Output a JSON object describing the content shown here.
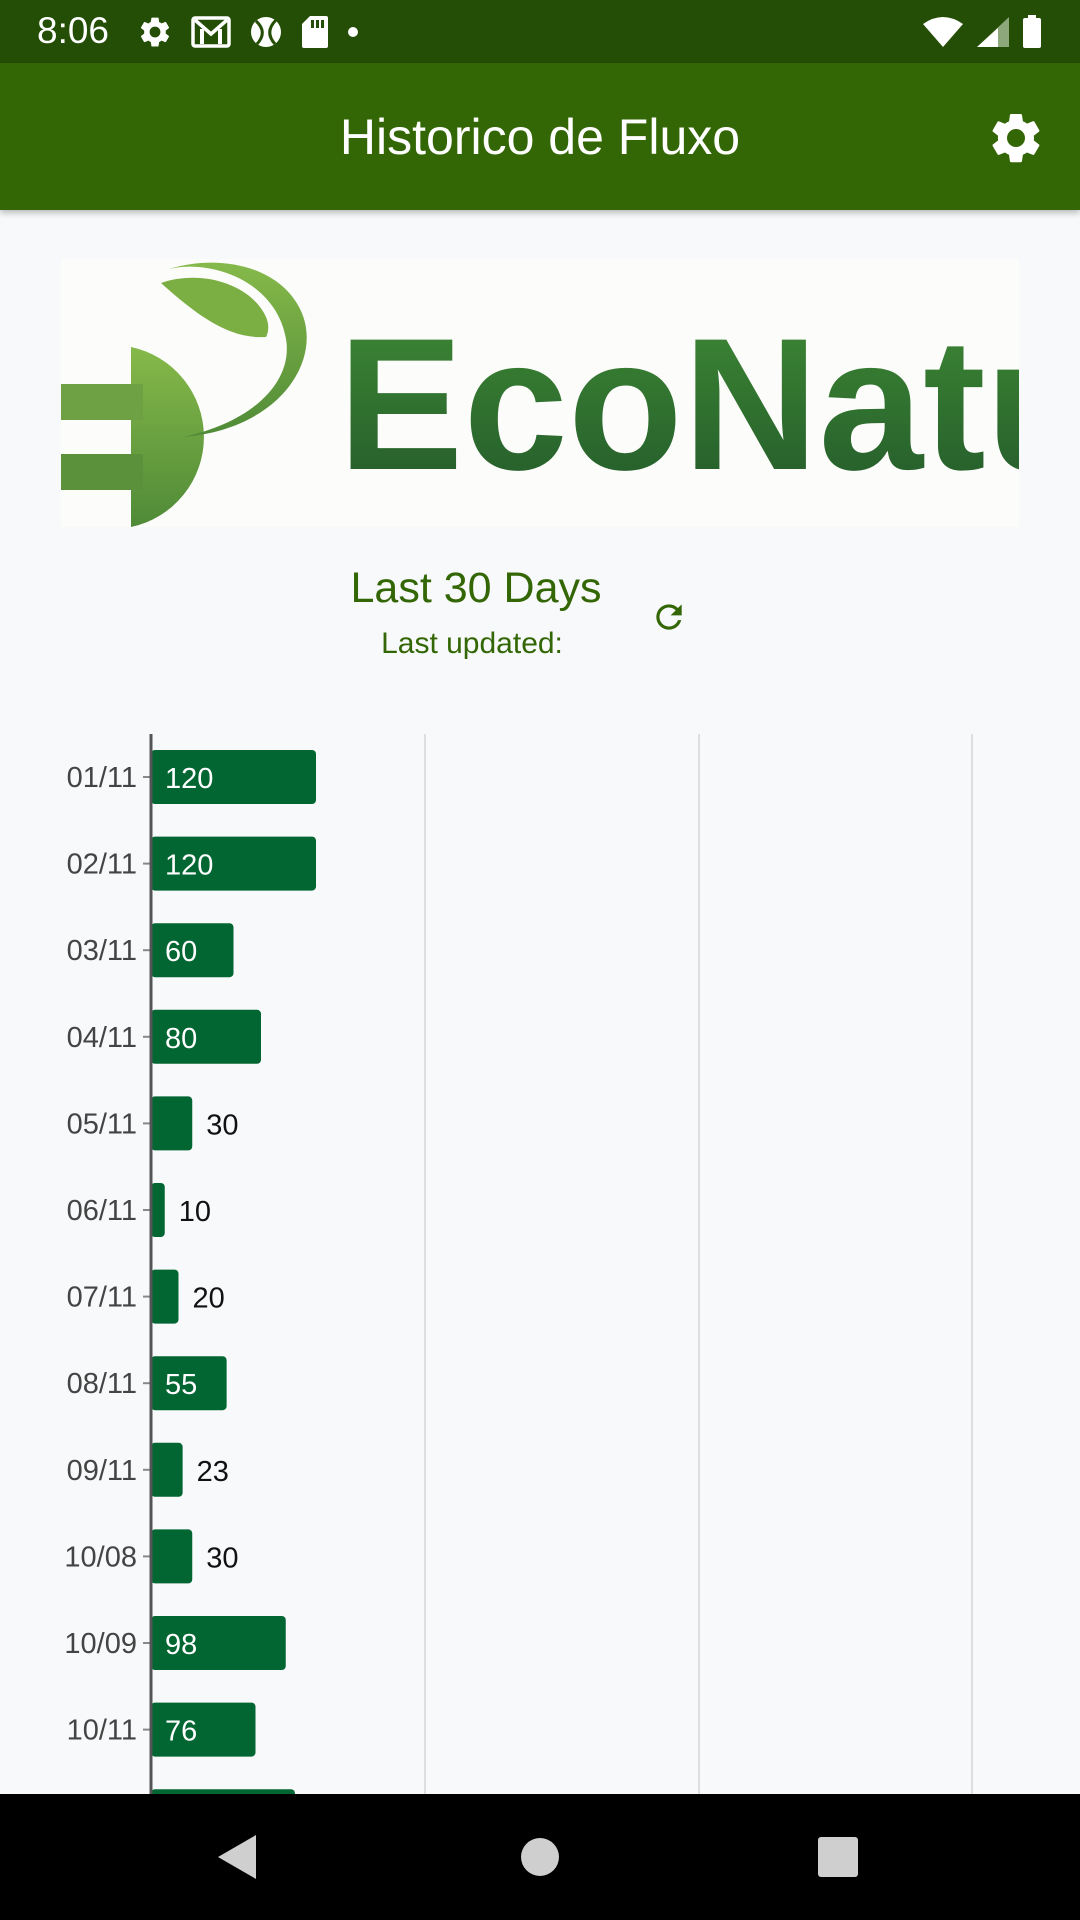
{
  "status_bar": {
    "time": "8:06",
    "left_icons": [
      "gear-icon",
      "gmail-icon",
      "sports-ball-icon",
      "sd-card-icon",
      "notification-dot-icon"
    ],
    "right_icons": [
      "wifi-icon",
      "signal-icon",
      "battery-icon"
    ]
  },
  "app_bar": {
    "title": "Historico de Fluxo",
    "action_icon": "settings-icon"
  },
  "logo": {
    "text": "EcoNatu",
    "colors": {
      "light_green": "#7bae43",
      "dark_green": "#2f6e2c"
    }
  },
  "header": {
    "title": "Last 30 Days",
    "last_updated_label": "Last updated:",
    "refresh_icon": "refresh-icon"
  },
  "chart_data": {
    "type": "bar",
    "orientation": "horizontal",
    "categories": [
      "01/11",
      "02/11",
      "03/11",
      "04/11",
      "05/11",
      "06/11",
      "07/11",
      "08/11",
      "09/11",
      "10/08",
      "10/09",
      "10/11"
    ],
    "values": [
      120,
      120,
      60,
      80,
      30,
      10,
      20,
      55,
      23,
      30,
      98,
      76
    ],
    "partially_visible_next_bar": true,
    "grid": true,
    "bar_color": "#026633"
  },
  "nav_bar": {
    "buttons": [
      "back-icon",
      "home-icon",
      "recents-icon"
    ]
  },
  "colors": {
    "status_bar": "#244d05",
    "app_bar": "#336604",
    "accent_text": "#336604",
    "background": "#f8f9fa"
  }
}
